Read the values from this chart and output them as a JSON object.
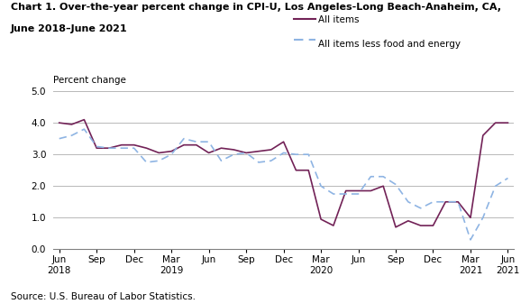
{
  "title_line1": "Chart 1. Over-the-year percent change in CPI-U, Los Angeles-Long Beach-Anaheim, CA,",
  "title_line2": "June 2018–June 2021",
  "ylabel": "Percent change",
  "source": "Source: U.S. Bureau of Labor Statistics.",
  "ylim": [
    0.0,
    5.0
  ],
  "yticks": [
    0.0,
    1.0,
    2.0,
    3.0,
    4.0,
    5.0
  ],
  "all_items_color": "#722257",
  "all_items_less_color": "#8eb4e3",
  "legend_label1": "All items",
  "legend_label2": "All items less food and energy",
  "all_items_monthly": [
    4.0,
    3.95,
    4.1,
    3.2,
    3.2,
    3.3,
    3.3,
    3.2,
    3.05,
    3.1,
    3.3,
    3.3,
    3.05,
    3.2,
    3.15,
    3.05,
    3.1,
    3.15,
    3.4,
    2.5,
    2.5,
    0.95,
    0.75,
    1.85,
    1.85,
    1.85,
    2.0,
    0.7,
    0.9,
    0.75,
    0.75,
    1.5,
    1.5,
    1.0,
    3.6,
    4.0,
    4.0
  ],
  "all_items_less_monthly": [
    3.5,
    3.6,
    3.8,
    3.25,
    3.2,
    3.2,
    3.2,
    2.75,
    2.8,
    3.0,
    3.5,
    3.4,
    3.4,
    2.8,
    3.0,
    3.05,
    2.75,
    2.8,
    3.05,
    3.0,
    3.0,
    2.0,
    1.75,
    1.75,
    1.75,
    2.3,
    2.3,
    2.05,
    1.5,
    1.3,
    1.5,
    1.5,
    1.5,
    0.3,
    1.0,
    2.0,
    2.25
  ]
}
